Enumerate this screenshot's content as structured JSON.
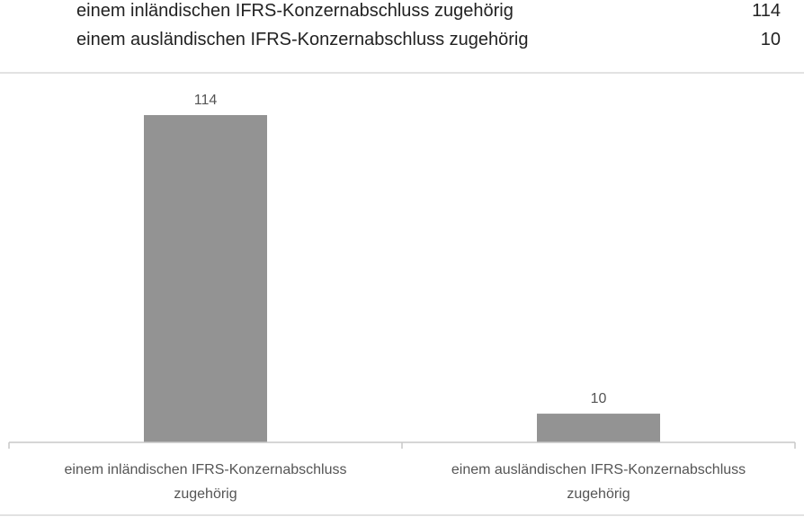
{
  "summary": [
    {
      "label": "einem inländischen IFRS-Konzernabschluss zugehörig",
      "value": "114"
    },
    {
      "label": "einem ausländischen IFRS-Konzernabschluss zugehörig",
      "value": "10"
    }
  ],
  "chart_data": {
    "type": "bar",
    "categories": [
      [
        "einem inländischen IFRS-Konzernabschluss",
        "zugehörig"
      ],
      [
        "einem ausländischen IFRS-Konzernabschluss",
        "zugehörig"
      ]
    ],
    "values": [
      114,
      10
    ],
    "ylim": [
      0,
      120
    ],
    "grid": false,
    "bar_color": "#939393",
    "axis_color": "#c8c8c8"
  }
}
